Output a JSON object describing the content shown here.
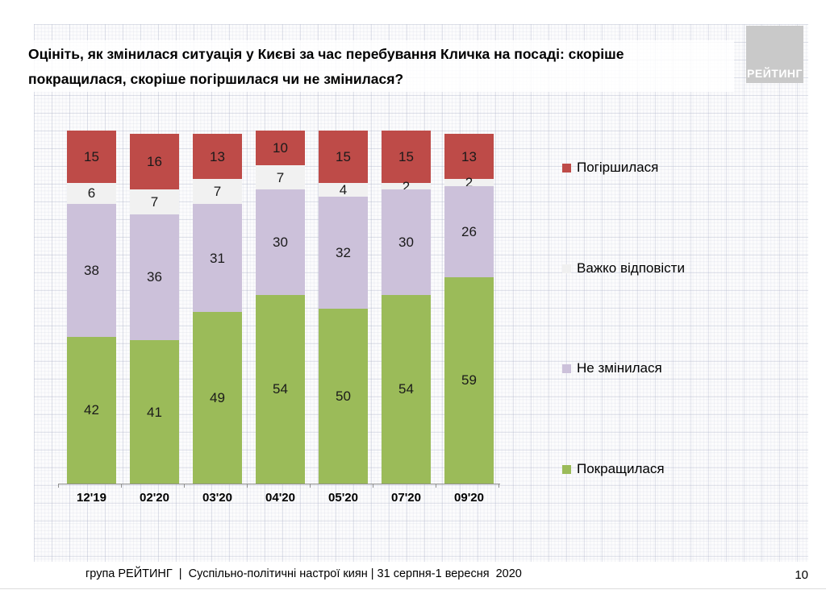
{
  "slide": {
    "title_line1": "Оцініть, як змінилася ситуація у Києві за час перебування Кличка на посаді: скоріше",
    "title_line2": "покращилася, скоріше погіршилася чи не змінилася?",
    "logo_text": "РЕЙТИНГ",
    "footer": "група РЕЙТИНГ  |  Суспільно-політичні настрої киян | 31 серпня-1 вересня  2020",
    "page_number": "10"
  },
  "chart_data": {
    "type": "bar",
    "stacked": true,
    "grid": false,
    "value_labels": true,
    "legend_position": "right",
    "categories": [
      "12'19",
      "02'20",
      "03'20",
      "04'20",
      "05'20",
      "07'20",
      "09'20"
    ],
    "series": [
      {
        "name": "Покращилася",
        "color": "#9bbb59",
        "values": [
          42,
          41,
          49,
          54,
          50,
          54,
          59
        ]
      },
      {
        "name": "Не змінилася",
        "color": "#ccc1da",
        "values": [
          38,
          36,
          31,
          30,
          32,
          30,
          26
        ]
      },
      {
        "name": "Важко відповісти",
        "color": "#f1f1f1",
        "values": [
          6,
          7,
          7,
          7,
          4,
          2,
          2
        ]
      },
      {
        "name": "Погіршилася",
        "color": "#be4b48",
        "values": [
          15,
          16,
          13,
          10,
          15,
          15,
          13
        ]
      }
    ],
    "legend": [
      {
        "label": "Погіршилася",
        "color": "#be4b48"
      },
      {
        "label": "Важко відповісти",
        "color": "#f0f0f0"
      },
      {
        "label": "Не змінилася",
        "color": "#ccc1da"
      },
      {
        "label": "Покращилася",
        "color": "#9bbb59"
      }
    ],
    "ylim": [
      0,
      101
    ]
  }
}
